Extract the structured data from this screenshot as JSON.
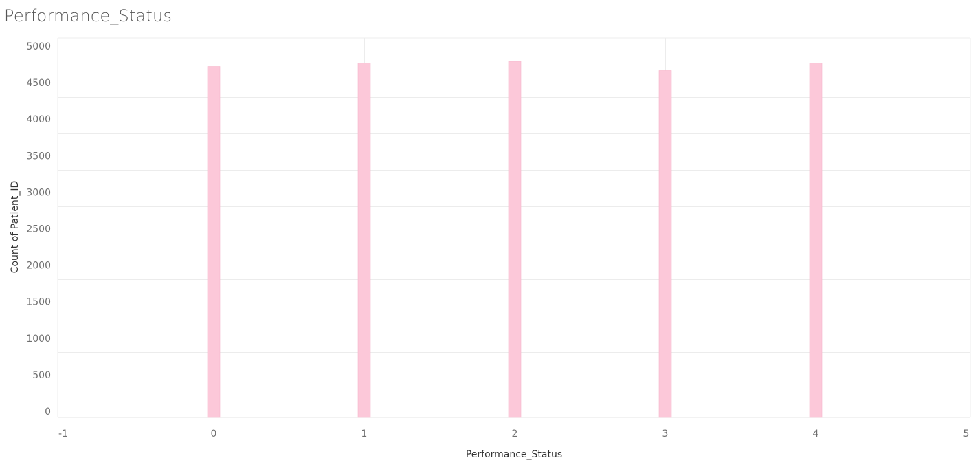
{
  "title": "Performance_Status",
  "chart_data": {
    "type": "bar",
    "title": "Performance_Status",
    "xlabel": "Performance_Status",
    "ylabel": "Count of Patient_ID",
    "x": [
      0,
      1,
      2,
      3,
      4
    ],
    "values": [
      4722,
      4770,
      4793,
      4666,
      4770
    ],
    "xlim": [
      -1,
      5
    ],
    "ylim": [
      0,
      5000
    ],
    "xticks": [
      -1,
      0,
      1,
      2,
      3,
      4,
      5
    ],
    "yticks": [
      0,
      500,
      1000,
      1500,
      2000,
      2500,
      3000,
      3500,
      4000,
      4500,
      5000
    ],
    "grid": true,
    "reference_line_x": 0,
    "colors": {
      "bar": "#fcc8d9",
      "bar_stroke": "#f7b6cb",
      "grid": "#ececec",
      "reference_line": "#b8b8b8"
    }
  }
}
